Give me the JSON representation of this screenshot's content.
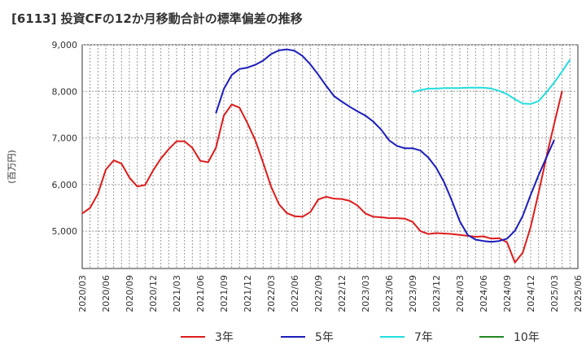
{
  "title": "[6113]  投資CFの12か月移動合計の標準偏差の推移",
  "chart_data": {
    "type": "line",
    "ylabel": "(百万円)",
    "ylim": [
      4200,
      9000
    ],
    "yticks": [
      5000,
      6000,
      7000,
      8000,
      9000
    ],
    "ytick_labels": [
      "5,000",
      "6,000",
      "7,000",
      "8,000",
      "9,000"
    ],
    "xlim": [
      "2020-03",
      "2025-06"
    ],
    "xtick_labels": [
      "2020/03",
      "2020/06",
      "2020/09",
      "2020/12",
      "2021/03",
      "2021/06",
      "2021/09",
      "2021/12",
      "2022/03",
      "2022/06",
      "2022/09",
      "2022/12",
      "2023/03",
      "2023/06",
      "2023/09",
      "2023/12",
      "2024/03",
      "2024/06",
      "2024/09",
      "2024/12",
      "2025/03",
      "2025/06"
    ],
    "grid": true,
    "legend_position": "bottom",
    "series": [
      {
        "name": "3年",
        "color": "#dd1c1c",
        "start": "2020-03",
        "values": [
          5380,
          5500,
          5800,
          6320,
          6520,
          6450,
          6150,
          5960,
          5990,
          6300,
          6560,
          6760,
          6930,
          6930,
          6790,
          6510,
          6480,
          6790,
          7480,
          7720,
          7650,
          7320,
          6950,
          6470,
          5960,
          5580,
          5390,
          5320,
          5310,
          5410,
          5680,
          5740,
          5700,
          5690,
          5650,
          5550,
          5380,
          5310,
          5300,
          5280,
          5280,
          5270,
          5200,
          5000,
          4940,
          4960,
          4950,
          4940,
          4920,
          4900,
          4880,
          4890,
          4840,
          4850,
          4760,
          4330,
          4540,
          5090,
          5820,
          6590,
          7310,
          8010
        ]
      },
      {
        "name": "5年",
        "color": "#1c1cbb",
        "start": "2021-08",
        "values": [
          7530,
          8050,
          8350,
          8480,
          8510,
          8570,
          8660,
          8800,
          8880,
          8900,
          8870,
          8760,
          8580,
          8360,
          8120,
          7900,
          7780,
          7670,
          7570,
          7480,
          7350,
          7180,
          6950,
          6830,
          6780,
          6780,
          6730,
          6580,
          6360,
          6050,
          5650,
          5210,
          4920,
          4820,
          4790,
          4770,
          4790,
          4840,
          5010,
          5330,
          5780,
          6200,
          6580,
          6960
        ]
      },
      {
        "name": "7年",
        "color": "#22dddd",
        "start": "2023-09",
        "values": [
          7980,
          8030,
          8060,
          8060,
          8070,
          8070,
          8070,
          8080,
          8080,
          8080,
          8060,
          8010,
          7940,
          7830,
          7740,
          7730,
          7790,
          7980,
          8190,
          8430,
          8680
        ]
      },
      {
        "name": "10年",
        "color": "#228822",
        "start": "2025-03",
        "values": []
      }
    ]
  }
}
